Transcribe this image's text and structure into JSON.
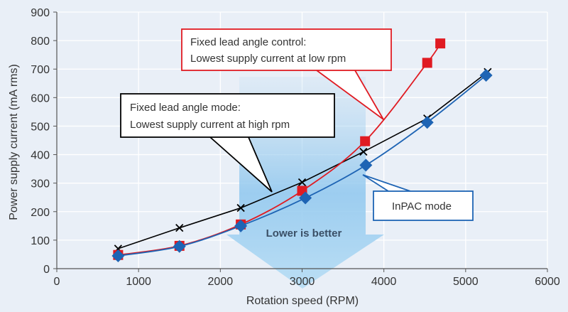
{
  "chart_data": {
    "type": "line",
    "title": "",
    "xlabel": "Rotation speed (RPM)",
    "ylabel": "Power supply current (mA rms)",
    "xlim": [
      0,
      6000
    ],
    "ylim": [
      0,
      900
    ],
    "x_ticks": [
      "0",
      "1000",
      "2000",
      "3000",
      "4000",
      "5000",
      "6000"
    ],
    "y_ticks": [
      "0",
      "100",
      "200",
      "300",
      "400",
      "500",
      "600",
      "700",
      "800",
      "900"
    ],
    "grid": true,
    "series": [
      {
        "marker": "x",
        "color": "#000000",
        "points": [
          {
            "x": 750,
            "y": 70
          },
          {
            "x": 1500,
            "y": 143
          },
          {
            "x": 2250,
            "y": 213
          },
          {
            "x": 3000,
            "y": 303
          },
          {
            "x": 3750,
            "y": 410
          },
          {
            "x": 4530,
            "y": 527
          },
          {
            "x": 5270,
            "y": 690
          }
        ]
      },
      {
        "marker": "square",
        "color": "#e01b22",
        "points": [
          {
            "x": 750,
            "y": 48
          },
          {
            "x": 1500,
            "y": 80
          },
          {
            "x": 2250,
            "y": 155
          },
          {
            "x": 3000,
            "y": 273
          },
          {
            "x": 3770,
            "y": 447
          },
          {
            "x": 4530,
            "y": 722
          },
          {
            "x": 4690,
            "y": 790
          }
        ]
      },
      {
        "marker": "diamond",
        "color": "#1e64b4",
        "points": [
          {
            "x": 750,
            "y": 45
          },
          {
            "x": 1500,
            "y": 78
          },
          {
            "x": 2250,
            "y": 150
          },
          {
            "x": 3040,
            "y": 248
          },
          {
            "x": 3780,
            "y": 363
          },
          {
            "x": 4530,
            "y": 513
          },
          {
            "x": 5250,
            "y": 678
          }
        ]
      }
    ],
    "annotations": {
      "red": {
        "line1": "Fixed lead angle control:",
        "line2": "Lowest supply current at low rpm"
      },
      "black": {
        "line1": "Fixed lead angle mode:",
        "line2": "Lowest supply current at high rpm"
      },
      "blue": {
        "line1": "InPAC mode"
      },
      "arrow": {
        "label": "Lower is better"
      }
    },
    "colors": {
      "background": "#e9eff7",
      "grid": "#ffffff",
      "arrow_fill": "#a7d2ef",
      "red": "#e01b22",
      "blue": "#1e64b4",
      "black": "#000000"
    }
  }
}
